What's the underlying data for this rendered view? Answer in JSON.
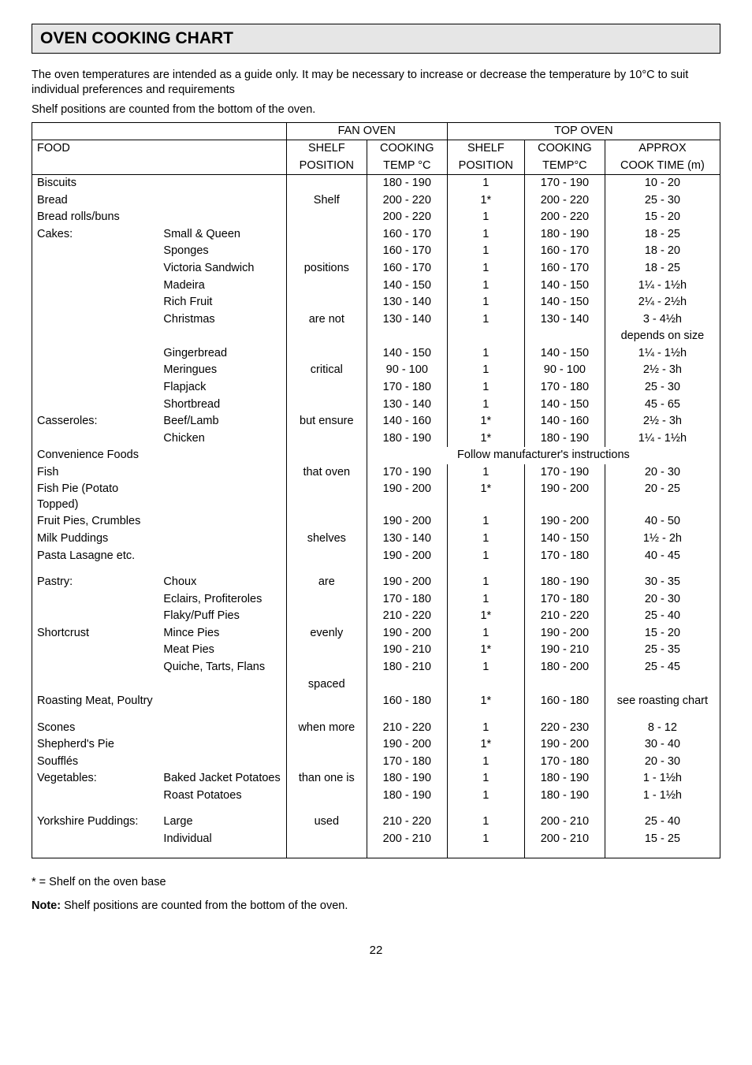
{
  "title": "OVEN COOKING CHART",
  "intro1": "The oven temperatures are intended as a guide only.  It may be necessary to increase or decrease the temperature by 10°C to suit individual preferences and requirements",
  "intro2": "Shelf positions are counted from the bottom of the oven.",
  "fan_oven": "FAN OVEN",
  "top_oven": "TOP OVEN",
  "food": "FOOD",
  "shelf_pos": "SHELF",
  "shelf_pos2": "POSITION",
  "cooking": "COOKING",
  "tempc": "TEMP °C",
  "tempc2": "TEMP°C",
  "approx": "APPROX",
  "cooktime": "COOK TIME (m)",
  "shelf_words": [
    "Shelf",
    "",
    "positions",
    "",
    "",
    "are not",
    "",
    "",
    "critical",
    "",
    "",
    "but ensure",
    "",
    "",
    "that oven",
    "",
    "",
    "",
    "shelves",
    "",
    "",
    "are",
    "",
    "",
    "evenly",
    "",
    "",
    "spaced",
    "",
    "when more",
    "",
    "",
    "than one is",
    "",
    "",
    "used"
  ],
  "rows": [
    {
      "f1": "Biscuits",
      "f2": "",
      "ct": "180 - 190",
      "sp2": "1",
      "ct2": "170 - 190",
      "ap": "10 - 20"
    },
    {
      "f1": "Bread",
      "f2": "",
      "ct": "200 - 220",
      "sp2": "1*",
      "ct2": "200 - 220",
      "ap": "25 - 30"
    },
    {
      "f1": "Bread rolls/buns",
      "f2": "",
      "ct": "200 - 220",
      "sp2": "1",
      "ct2": "200 - 220",
      "ap": "15 - 20"
    },
    {
      "f1": "Cakes:",
      "f2": "Small & Queen",
      "ct": "160 - 170",
      "sp2": "1",
      "ct2": "180 - 190",
      "ap": "18 - 25"
    },
    {
      "f1": "",
      "f2": "Sponges",
      "ct": "160 - 170",
      "sp2": "1",
      "ct2": "160 - 170",
      "ap": "18 - 20"
    },
    {
      "f1": "",
      "f2": "Victoria Sandwich",
      "ct": "160 - 170",
      "sp2": "1",
      "ct2": "160 - 170",
      "ap": "18 - 25"
    },
    {
      "f1": "",
      "f2": "Madeira",
      "ct": "140 - 150",
      "sp2": "1",
      "ct2": "140 - 150",
      "ap": "1¼ - 1½h"
    },
    {
      "f1": "",
      "f2": "Rich Fruit",
      "ct": "130 - 140",
      "sp2": "1",
      "ct2": "140 - 150",
      "ap": "2¼ - 2½h"
    },
    {
      "f1": "",
      "f2": "Christmas",
      "ct": "130 - 140",
      "sp2": "1",
      "ct2": "130 - 140",
      "ap": "3 - 4½h"
    },
    {
      "f1": "",
      "f2": "",
      "ct": "",
      "sp2": "",
      "ct2": "",
      "ap": "depends on size"
    },
    {
      "f1": "",
      "f2": "Gingerbread",
      "ct": "140 - 150",
      "sp2": "1",
      "ct2": "140 - 150",
      "ap": "1¼ - 1½h"
    },
    {
      "f1": "",
      "f2": "Meringues",
      "ct": "90 - 100",
      "sp2": "1",
      "ct2": "90 - 100",
      "ap": "2½ - 3h"
    },
    {
      "f1": "",
      "f2": "Flapjack",
      "ct": "170 - 180",
      "sp2": "1",
      "ct2": "170 - 180",
      "ap": "25 - 30"
    },
    {
      "f1": "",
      "f2": "Shortbread",
      "ct": "130 - 140",
      "sp2": "1",
      "ct2": "140 - 150",
      "ap": "45 - 65"
    },
    {
      "f1": "Casseroles:",
      "f2": "Beef/Lamb",
      "ct": "140 - 160",
      "sp2": "1*",
      "ct2": "140 - 160",
      "ap": "2½ - 3h"
    },
    {
      "f1": "",
      "f2": "Chicken",
      "ct": "180 - 190",
      "sp2": "1*",
      "ct2": "180 - 190",
      "ap": "1¼ - 1½h"
    }
  ],
  "conv_foods": "Convenience Foods",
  "follow": "Follow manufacturer's instructions",
  "rows2": [
    {
      "f1": "Fish",
      "f2": "",
      "ct": "170 - 190",
      "sp2": "1",
      "ct2": "170 - 190",
      "ap": "20 - 30"
    },
    {
      "f1": "Fish Pie (Potato Topped)",
      "f2": "",
      "ct": "190 - 200",
      "sp2": "1*",
      "ct2": "190 - 200",
      "ap": "20 - 25"
    },
    {
      "f1": "Fruit Pies, Crumbles",
      "f2": "",
      "ct": "190 - 200",
      "sp2": "1",
      "ct2": "190 - 200",
      "ap": "40 - 50"
    },
    {
      "f1": "Milk Puddings",
      "f2": "",
      "ct": "130 - 140",
      "sp2": "1",
      "ct2": "140 - 150",
      "ap": "1½ - 2h"
    },
    {
      "f1": "Pasta Lasagne etc.",
      "f2": "",
      "ct": "190 - 200",
      "sp2": "1",
      "ct2": "170 - 180",
      "ap": "40 - 45"
    }
  ],
  "rows3": [
    {
      "f1": "Pastry:",
      "f2": "Choux",
      "ct": "190 - 200",
      "sp2": "1",
      "ct2": "180 - 190",
      "ap": "30 - 35"
    },
    {
      "f1": "",
      "f2": "Eclairs, Profiteroles",
      "ct": "170 - 180",
      "sp2": "1",
      "ct2": "170 - 180",
      "ap": "20 - 30"
    },
    {
      "f1": "",
      "f2": "Flaky/Puff Pies",
      "ct": "210 - 220",
      "sp2": "1*",
      "ct2": "210 - 220",
      "ap": "25 - 40"
    },
    {
      "f1": "Shortcrust",
      "f2": "Mince Pies",
      "ct": "190 - 200",
      "sp2": "1",
      "ct2": "190 - 200",
      "ap": "15 - 20"
    },
    {
      "f1": "",
      "f2": "Meat Pies",
      "ct": "190 - 210",
      "sp2": "1*",
      "ct2": "190 - 210",
      "ap": "25 - 35"
    },
    {
      "f1": "",
      "f2": "Quiche, Tarts, Flans",
      "ct": "180 - 210",
      "sp2": "1",
      "ct2": "180 - 200",
      "ap": "25 - 45"
    }
  ],
  "roast": {
    "f1": "Roasting Meat, Poultry",
    "f2": "",
    "ct": "160 - 180",
    "sp2": "1*",
    "ct2": "160 - 180",
    "ap": "see roasting chart"
  },
  "rows4": [
    {
      "f1": "Scones",
      "f2": "",
      "ct": "210 - 220",
      "sp2": "1",
      "ct2": "220 - 230",
      "ap": "8 - 12"
    },
    {
      "f1": "Shepherd's Pie",
      "f2": "",
      "ct": "190 - 200",
      "sp2": "1*",
      "ct2": "190 - 200",
      "ap": "30 - 40"
    },
    {
      "f1": "Soufflés",
      "f2": "",
      "ct": "170 - 180",
      "sp2": "1",
      "ct2": "170 - 180",
      "ap": "20 - 30"
    },
    {
      "f1": "Vegetables:",
      "f2": "Baked Jacket Potatoes",
      "ct": "180 - 190",
      "sp2": "1",
      "ct2": "180 - 190",
      "ap": "1 - 1½h"
    },
    {
      "f1": "",
      "f2": "Roast Potatoes",
      "ct": "180 - 190",
      "sp2": "1",
      "ct2": "180 - 190",
      "ap": "1 - 1½h"
    }
  ],
  "rows5": [
    {
      "f1": "Yorkshire Puddings:",
      "f2": "Large",
      "ct": "210 - 220",
      "sp2": "1",
      "ct2": "200 - 210",
      "ap": "25 - 40"
    },
    {
      "f1": "",
      "f2": "Individual",
      "ct": "200 - 210",
      "sp2": "1",
      "ct2": "200 - 210",
      "ap": "15 - 25"
    }
  ],
  "footnote": "* = Shelf on the oven base",
  "note": "Note:",
  "note_text": " Shelf positions are counted from the bottom of the oven.",
  "page": "22"
}
